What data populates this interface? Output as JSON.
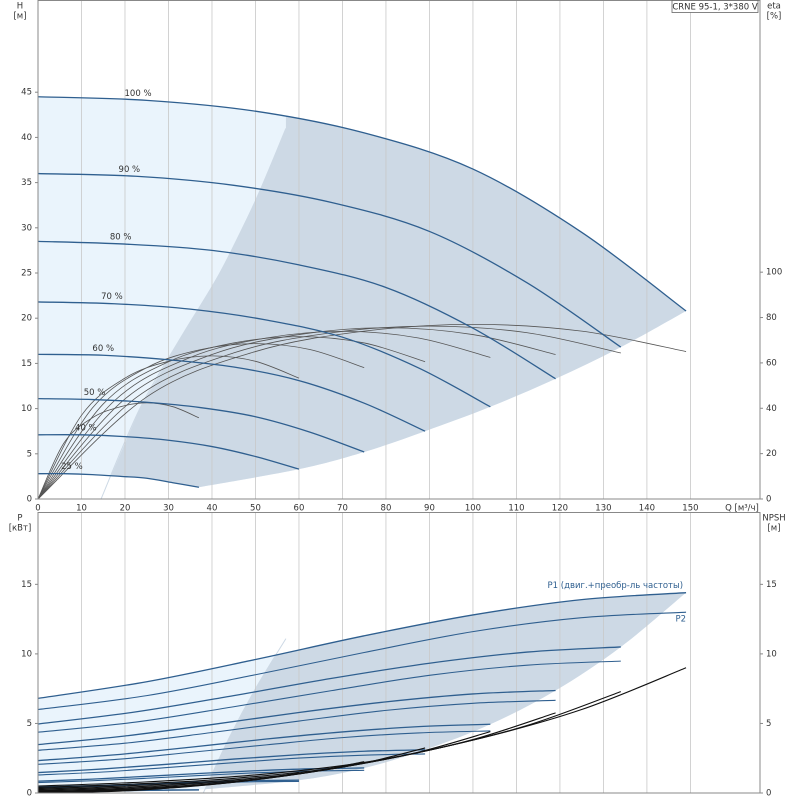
{
  "chart_data": [
    {
      "type": "line",
      "title": "CRNE 95-1, 3*380 V",
      "x_label": "Q [м³/ч]",
      "y_label": "H",
      "y_unit": "[м]",
      "y2_label": "eta",
      "y2_unit": "[%]",
      "xlim": [
        0,
        166
      ],
      "xticks": [
        0,
        10,
        20,
        30,
        40,
        50,
        60,
        70,
        80,
        90,
        100,
        110,
        120,
        130,
        140,
        150
      ],
      "ylim": [
        0,
        55.2
      ],
      "yticks": [
        0,
        5,
        10,
        15,
        20,
        25,
        30,
        35,
        40,
        45
      ],
      "y2lim": [
        0,
        220
      ],
      "y2ticks": [
        0,
        20,
        40,
        60,
        80,
        100
      ],
      "grid": "x",
      "colors": {
        "head": "#2f5f8f",
        "eta": "#555555",
        "region": "#eaf4fc",
        "region_dark": "#cdd9e5"
      },
      "series": [
        {
          "name": "100 %",
          "x": [
            0,
            25,
            50,
            75,
            100,
            125,
            149
          ],
          "values": [
            44.5,
            44.1,
            42.9,
            40.5,
            36.5,
            29.5,
            20.8
          ]
        },
        {
          "name": "90 %",
          "x": [
            0,
            22.5,
            45,
            67.5,
            90,
            112.5,
            134
          ],
          "values": [
            36.0,
            35.7,
            34.7,
            32.8,
            29.6,
            23.9,
            16.8
          ]
        },
        {
          "name": "80 %",
          "x": [
            0,
            20,
            40,
            60,
            80,
            100,
            119
          ],
          "values": [
            28.5,
            28.2,
            27.5,
            25.9,
            23.4,
            18.9,
            13.3
          ]
        },
        {
          "name": "70 %",
          "x": [
            0,
            17.5,
            35,
            52.5,
            70,
            87.5,
            104
          ],
          "values": [
            21.8,
            21.6,
            21.0,
            19.8,
            17.9,
            14.5,
            10.2
          ]
        },
        {
          "name": "60 %",
          "x": [
            0,
            15,
            30,
            45,
            60,
            75,
            89
          ],
          "values": [
            16.0,
            15.9,
            15.4,
            14.6,
            13.1,
            10.6,
            7.5
          ]
        },
        {
          "name": "50 %",
          "x": [
            0,
            12.5,
            25,
            37.5,
            50,
            62.5,
            75
          ],
          "values": [
            11.1,
            11.0,
            10.7,
            10.1,
            9.1,
            7.4,
            5.2
          ]
        },
        {
          "name": "40 %",
          "x": [
            0,
            10,
            20,
            30,
            40,
            50,
            60
          ],
          "values": [
            7.1,
            7.1,
            6.9,
            6.5,
            5.8,
            4.7,
            3.3
          ]
        },
        {
          "name": "25 %",
          "x": [
            0,
            6,
            12.5,
            19,
            25,
            31,
            37
          ],
          "values": [
            2.8,
            2.8,
            2.7,
            2.5,
            2.3,
            1.8,
            1.3
          ]
        }
      ],
      "eta_series": [
        {
          "axis": "y2",
          "x": [
            0,
            25,
            50,
            75,
            100,
            125,
            149
          ],
          "values": [
            0,
            45,
            65,
            74,
            77,
            74,
            65
          ]
        },
        {
          "axis": "y2",
          "x": [
            0,
            22.5,
            45,
            67.5,
            90,
            112.5,
            134
          ],
          "values": [
            0,
            44.6,
            64.4,
            73.3,
            76.2,
            73.3,
            64.4
          ]
        },
        {
          "axis": "y2",
          "x": [
            0,
            20,
            40,
            60,
            80,
            100,
            119
          ],
          "values": [
            0,
            44.1,
            63.7,
            72.5,
            75.5,
            72.5,
            63.7
          ]
        },
        {
          "axis": "y2",
          "x": [
            0,
            17.5,
            35,
            52.5,
            70,
            87.5,
            104
          ],
          "values": [
            0,
            43.2,
            62.4,
            71.0,
            73.9,
            71.0,
            62.4
          ]
        },
        {
          "axis": "y2",
          "x": [
            0,
            15,
            30,
            45,
            60,
            75,
            89
          ],
          "values": [
            0,
            41.9,
            60.5,
            68.8,
            71.6,
            68.8,
            60.5
          ]
        },
        {
          "axis": "y2",
          "x": [
            0,
            12.5,
            25,
            37.5,
            50,
            62.5,
            75
          ],
          "values": [
            0,
            40.1,
            57.9,
            65.9,
            68.5,
            65.9,
            57.9
          ]
        },
        {
          "axis": "y2",
          "x": [
            0,
            10,
            20,
            30,
            40,
            50,
            60
          ],
          "values": [
            0,
            36.9,
            53.3,
            60.7,
            63.1,
            60.7,
            53.3
          ]
        },
        {
          "axis": "y2",
          "x": [
            0,
            6,
            12.5,
            19,
            25,
            31,
            37
          ],
          "values": [
            0,
            24.8,
            35.8,
            40.7,
            42.4,
            40.7,
            35.8
          ]
        }
      ],
      "region_boundary": {
        "x": [
          14.5,
          23.4,
          33,
          41.8,
          50,
          57
        ],
        "values": [
          0,
          10,
          18,
          25,
          33,
          41
        ]
      }
    },
    {
      "type": "line",
      "y_label": "P",
      "y_unit": "[кВт]",
      "y2_label": "NPSH",
      "y2_unit": "[м]",
      "xlim": [
        0,
        166
      ],
      "xticks": [
        0,
        10,
        20,
        30,
        40,
        50,
        60,
        70,
        80,
        90,
        100,
        110,
        120,
        130,
        140,
        150
      ],
      "xtick_labels": false,
      "ylim": [
        0,
        20.2
      ],
      "yticks": [
        0,
        5,
        10,
        15
      ],
      "y2lim": [
        0,
        20.2
      ],
      "y2ticks": [
        0,
        5,
        10,
        15
      ],
      "grid": "x",
      "colors": {
        "p1": "#2f5f8f",
        "p2": "#2f5f8f",
        "npsh": "#111111",
        "region": "#eaf4fc",
        "region_dark": "#cdd9e5"
      },
      "p1_label": "P1 (двиг.+преобр-ль частоты)",
      "p2_label": "P2",
      "p1_series": [
        {
          "x": [
            0,
            25,
            50,
            75,
            100,
            125,
            149
          ],
          "values": [
            6.8,
            8.0,
            9.6,
            11.3,
            12.8,
            13.9,
            14.4
          ]
        },
        {
          "x": [
            0,
            22.5,
            45,
            67.5,
            90,
            112.5,
            134
          ],
          "values": [
            4.96,
            5.83,
            7.0,
            8.24,
            9.33,
            10.13,
            10.5
          ]
        },
        {
          "x": [
            0,
            20,
            40,
            60,
            80,
            100,
            119
          ],
          "values": [
            3.48,
            4.1,
            4.92,
            5.79,
            6.55,
            7.12,
            7.37
          ]
        },
        {
          "x": [
            0,
            17.5,
            35,
            52.5,
            70,
            87.5,
            104
          ],
          "values": [
            2.33,
            2.74,
            3.29,
            3.88,
            4.39,
            4.77,
            4.94
          ]
        },
        {
          "x": [
            0,
            15,
            30,
            45,
            60,
            75,
            89
          ],
          "values": [
            1.47,
            1.73,
            2.07,
            2.44,
            2.76,
            3.0,
            3.11
          ]
        },
        {
          "x": [
            0,
            12.5,
            25,
            37.5,
            50,
            62.5,
            75
          ],
          "values": [
            0.85,
            1.0,
            1.2,
            1.41,
            1.6,
            1.74,
            1.8
          ]
        },
        {
          "x": [
            0,
            10,
            20,
            30,
            40,
            50,
            60
          ],
          "values": [
            0.44,
            0.51,
            0.61,
            0.72,
            0.82,
            0.89,
            0.92
          ]
        },
        {
          "x": [
            0,
            6,
            12.5,
            19,
            25,
            31,
            37
          ],
          "values": [
            0.11,
            0.13,
            0.15,
            0.18,
            0.2,
            0.22,
            0.23
          ]
        }
      ],
      "p2_series": [
        {
          "x": [
            0,
            25,
            50,
            75,
            100,
            125,
            149
          ],
          "values": [
            6.0,
            7.0,
            8.5,
            10.1,
            11.6,
            12.6,
            13.0
          ]
        },
        {
          "x": [
            0,
            22.5,
            45,
            67.5,
            90,
            112.5,
            134
          ],
          "values": [
            4.37,
            5.1,
            6.2,
            7.36,
            8.46,
            9.19,
            9.48
          ]
        },
        {
          "x": [
            0,
            20,
            40,
            60,
            80,
            100,
            119
          ],
          "values": [
            3.07,
            3.58,
            4.35,
            5.17,
            5.94,
            6.45,
            6.66
          ]
        },
        {
          "x": [
            0,
            17.5,
            35,
            52.5,
            70,
            87.5,
            104
          ],
          "values": [
            2.06,
            2.4,
            2.92,
            3.46,
            3.98,
            4.32,
            4.46
          ]
        },
        {
          "x": [
            0,
            15,
            30,
            45,
            60,
            75,
            89
          ],
          "values": [
            1.3,
            1.51,
            1.84,
            2.18,
            2.51,
            2.72,
            2.81
          ]
        },
        {
          "x": [
            0,
            12.5,
            25,
            37.5,
            50,
            62.5,
            75
          ],
          "values": [
            0.75,
            0.88,
            1.06,
            1.26,
            1.45,
            1.58,
            1.63
          ]
        },
        {
          "x": [
            0,
            10,
            20,
            30,
            40,
            50,
            60
          ],
          "values": [
            0.38,
            0.45,
            0.54,
            0.65,
            0.74,
            0.81,
            0.83
          ]
        },
        {
          "x": [
            0,
            6,
            12.5,
            19,
            25,
            31,
            37
          ],
          "values": [
            0.09,
            0.11,
            0.13,
            0.16,
            0.18,
            0.2,
            0.21
          ]
        }
      ],
      "npsh_series": [
        {
          "axis": "y2",
          "x": [
            0,
            25,
            50,
            75,
            100,
            125,
            149
          ],
          "values": [
            0.5,
            0.8,
            1.3,
            2.2,
            3.8,
            6.0,
            9.0
          ]
        },
        {
          "axis": "y2",
          "x": [
            0,
            22.5,
            45,
            67.5,
            90,
            112.5,
            134
          ],
          "values": [
            0.4,
            0.65,
            1.05,
            1.78,
            3.08,
            4.86,
            7.29
          ]
        },
        {
          "axis": "y2",
          "x": [
            0,
            20,
            40,
            60,
            80,
            100,
            119
          ],
          "values": [
            0.32,
            0.51,
            0.83,
            1.41,
            2.43,
            3.84,
            5.76
          ]
        },
        {
          "axis": "y2",
          "x": [
            0,
            17.5,
            35,
            52.5,
            70,
            87.5,
            104
          ],
          "values": [
            0.25,
            0.39,
            0.64,
            1.08,
            1.86,
            2.94,
            4.41
          ]
        },
        {
          "axis": "y2",
          "x": [
            0,
            15,
            30,
            45,
            60,
            75,
            89
          ],
          "values": [
            0.18,
            0.29,
            0.47,
            0.79,
            1.37,
            2.16,
            3.24
          ]
        },
        {
          "axis": "y2",
          "x": [
            0,
            12.5,
            25,
            37.5,
            50,
            62.5,
            75
          ],
          "values": [
            0.13,
            0.2,
            0.33,
            0.55,
            0.95,
            1.5,
            2.25
          ]
        },
        {
          "axis": "y2",
          "x": [
            0,
            10,
            20,
            30,
            40,
            50,
            60
          ],
          "values": [
            0.08,
            0.13,
            0.21,
            0.35,
            0.61,
            0.96,
            1.44
          ]
        },
        {
          "axis": "y2",
          "x": [
            0,
            6,
            12.5,
            19,
            25,
            31,
            37
          ],
          "values": [
            0.03,
            0.05,
            0.08,
            0.14,
            0.24,
            0.38,
            0.56
          ]
        }
      ],
      "region_boundary": {
        "x": [
          38,
          44,
          50,
          57
        ],
        "values": [
          0,
          4,
          7.5,
          11.1
        ]
      }
    }
  ]
}
